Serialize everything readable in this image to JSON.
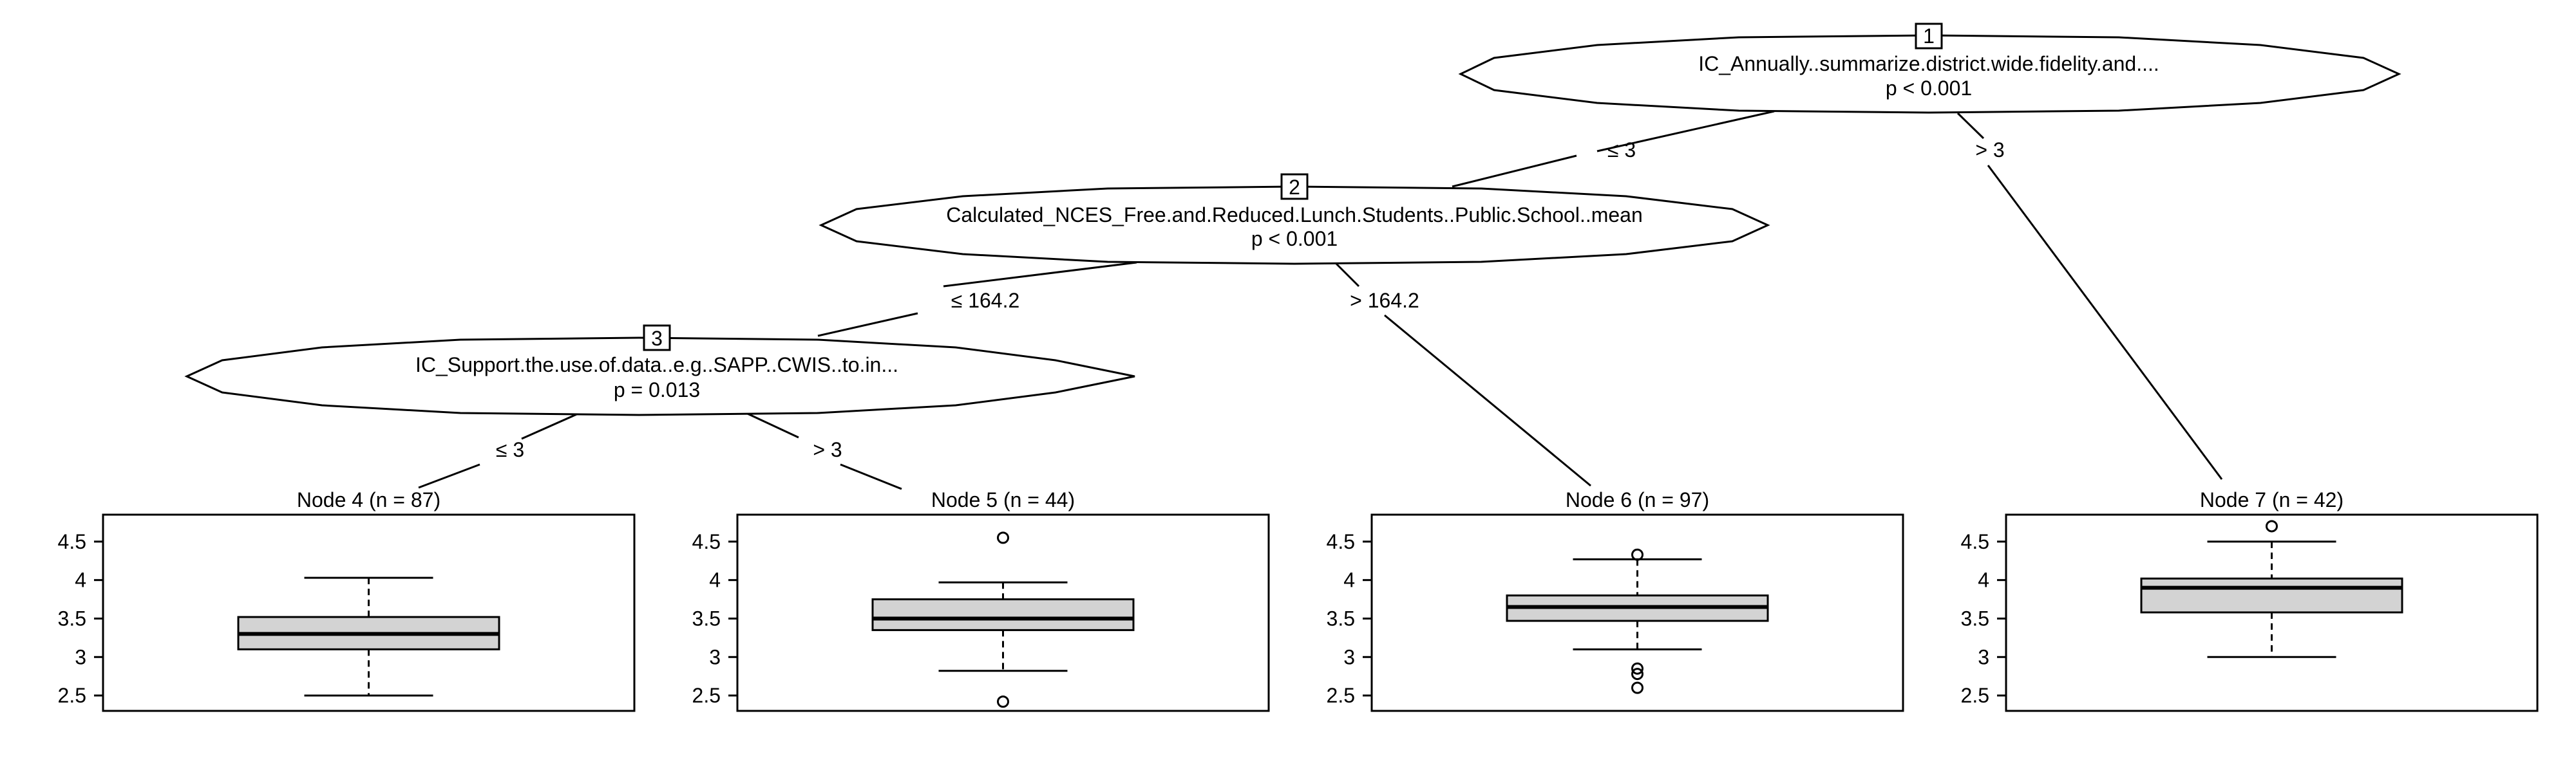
{
  "inner_nodes": [
    {
      "id": "1",
      "variable": "IC_Annually..summarize.district.wide.fidelity.and....",
      "p_value": "p < 0.001"
    },
    {
      "id": "2",
      "variable": "Calculated_NCES_Free.and.Reduced.Lunch.Students..Public.School..mean",
      "p_value": "p < 0.001"
    },
    {
      "id": "3",
      "variable": "IC_Support.the.use.of.data..e.g..SAPP..CWIS..to.in...",
      "p_value": "p = 0.013"
    }
  ],
  "edges": [
    {
      "from": "1",
      "to": "2",
      "label": "≤ 3"
    },
    {
      "from": "1",
      "to": "7",
      "label": "> 3"
    },
    {
      "from": "2",
      "to": "3",
      "label": "≤ 164.2"
    },
    {
      "from": "2",
      "to": "6",
      "label": "> 164.2"
    },
    {
      "from": "3",
      "to": "4",
      "label": "≤ 3"
    },
    {
      "from": "3",
      "to": "5",
      "label": "> 3"
    }
  ],
  "chart_data": {
    "type": "boxplot",
    "ylim": [
      2.3,
      4.85
    ],
    "y_ticks": [
      "2.5",
      "3",
      "3.5",
      "4",
      "4.5"
    ],
    "terminal_nodes": [
      {
        "id": "4",
        "title": "Node 4 (n = 87)",
        "n": 87,
        "min": 2.5,
        "q1": 3.1,
        "median": 3.3,
        "q3": 3.52,
        "max": 4.03,
        "outliers": []
      },
      {
        "id": "5",
        "title": "Node 5 (n = 44)",
        "n": 44,
        "min": 2.82,
        "q1": 3.35,
        "median": 3.5,
        "q3": 3.75,
        "max": 3.97,
        "outliers": [
          4.55,
          2.42
        ]
      },
      {
        "id": "6",
        "title": "Node 6 (n = 97)",
        "n": 97,
        "min": 3.1,
        "q1": 3.47,
        "median": 3.65,
        "q3": 3.8,
        "max": 4.27,
        "outliers": [
          4.33,
          2.85,
          2.78,
          2.6
        ]
      },
      {
        "id": "7",
        "title": "Node 7 (n = 42)",
        "n": 42,
        "min": 3.0,
        "q1": 3.58,
        "median": 3.9,
        "q3": 4.02,
        "max": 4.5,
        "outliers": [
          4.7
        ]
      }
    ]
  }
}
